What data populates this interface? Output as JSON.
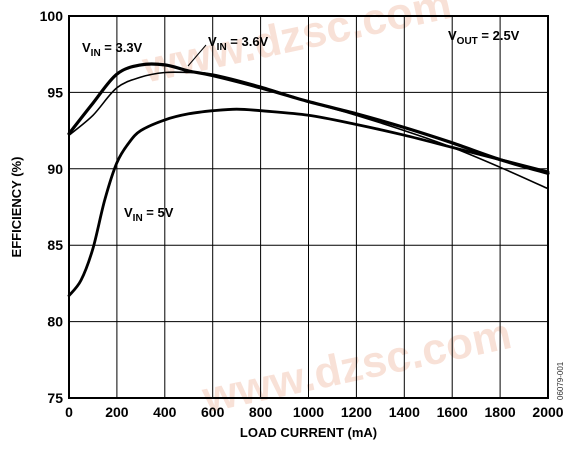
{
  "chart_data": {
    "type": "line",
    "title": "",
    "xlabel": "LOAD CURRENT (mA)",
    "ylabel": "EFFICIENCY (%)",
    "xlim": [
      0,
      2000
    ],
    "ylim": [
      75,
      100
    ],
    "x_ticks": [
      "0",
      "200",
      "400",
      "600",
      "800",
      "1000",
      "1200",
      "1400",
      "1600",
      "1800",
      "2000"
    ],
    "y_ticks": [
      "75",
      "80",
      "85",
      "90",
      "95",
      "100"
    ],
    "grid": true,
    "annotation": {
      "main": "V",
      "sub": "OUT",
      "rest": " = 2.5V"
    },
    "series": [
      {
        "name": "V_IN = 3.3V",
        "label": {
          "main": "V",
          "sub": "IN",
          "rest": " = 3.3V"
        },
        "points": [
          [
            0,
            92.3
          ],
          [
            100,
            94.3
          ],
          [
            200,
            96.2
          ],
          [
            300,
            96.8
          ],
          [
            400,
            96.8
          ],
          [
            500,
            96.4
          ],
          [
            600,
            96.1
          ],
          [
            800,
            95.3
          ],
          [
            1000,
            94.4
          ],
          [
            1200,
            93.6
          ],
          [
            1400,
            92.7
          ],
          [
            1600,
            91.7
          ],
          [
            1800,
            90.6
          ],
          [
            2000,
            89.7
          ]
        ]
      },
      {
        "name": "V_IN = 3.6V",
        "label": {
          "main": "V",
          "sub": "IN",
          "rest": " = 3.6V"
        },
        "points": [
          [
            0,
            92.2
          ],
          [
            100,
            93.5
          ],
          [
            200,
            95.3
          ],
          [
            300,
            96.0
          ],
          [
            400,
            96.3
          ],
          [
            500,
            96.3
          ],
          [
            600,
            96.2
          ],
          [
            800,
            95.4
          ],
          [
            1000,
            94.4
          ],
          [
            1200,
            93.5
          ],
          [
            1400,
            92.5
          ],
          [
            1600,
            91.4
          ],
          [
            1800,
            90.1
          ],
          [
            2000,
            88.7
          ]
        ]
      },
      {
        "name": "V_IN = 5V",
        "label": {
          "main": "V",
          "sub": "IN",
          "rest": " = 5V"
        },
        "points": [
          [
            0,
            81.7
          ],
          [
            50,
            82.7
          ],
          [
            100,
            84.8
          ],
          [
            150,
            88.0
          ],
          [
            200,
            90.4
          ],
          [
            250,
            91.7
          ],
          [
            300,
            92.5
          ],
          [
            400,
            93.2
          ],
          [
            500,
            93.6
          ],
          [
            600,
            93.8
          ],
          [
            700,
            93.9
          ],
          [
            800,
            93.8
          ],
          [
            1000,
            93.5
          ],
          [
            1200,
            92.9
          ],
          [
            1400,
            92.2
          ],
          [
            1600,
            91.4
          ],
          [
            1800,
            90.6
          ],
          [
            2000,
            89.8
          ]
        ]
      }
    ]
  },
  "figure_id": "06079-001",
  "watermark": "www.dzsc.com"
}
